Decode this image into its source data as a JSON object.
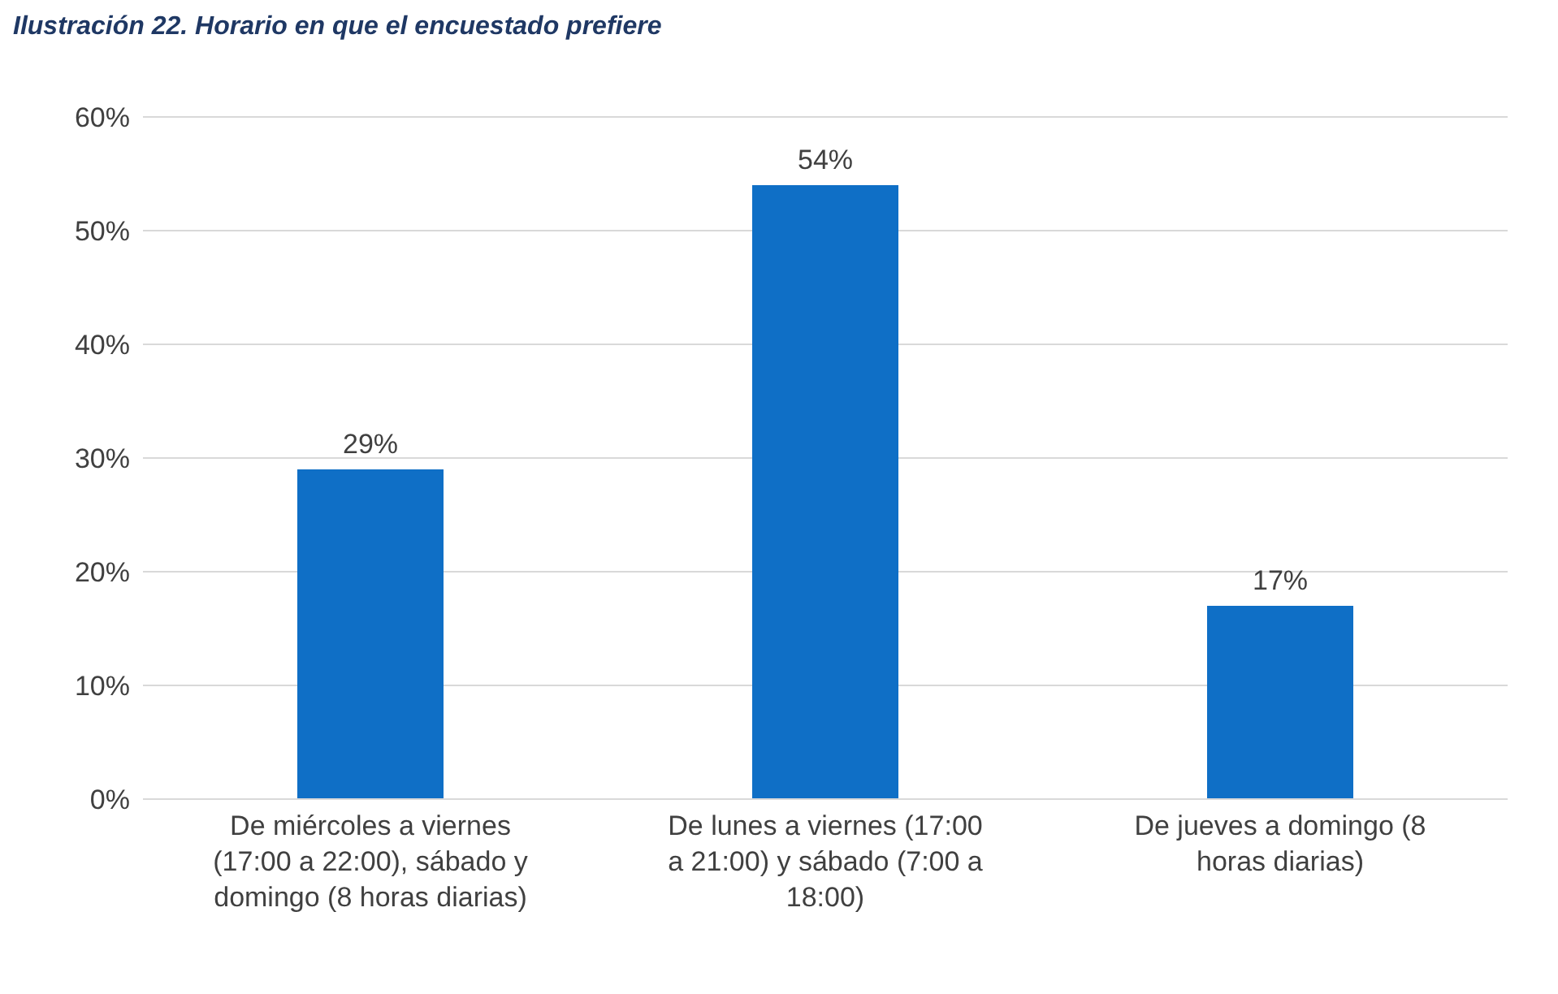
{
  "chart_data": {
    "type": "bar",
    "title": "Ilustración 22. Horario en que el encuestado prefiere",
    "categories": [
      "De miércoles a viernes (17:00 a 22:00), sábado y domingo (8 horas diarias)",
      "De lunes a viernes (17:00 a 21:00) y sábado (7:00 a 18:00)",
      "De jueves a domingo (8 horas diarias)"
    ],
    "values": [
      29,
      54,
      17
    ],
    "color": "#0f6fc6",
    "ylim": [
      0,
      60
    ],
    "yticks": [
      {
        "value": 0,
        "label": "0%"
      },
      {
        "value": 10,
        "label": "10%"
      },
      {
        "value": 20,
        "label": "20%"
      },
      {
        "value": 30,
        "label": "30%"
      },
      {
        "value": 40,
        "label": "40%"
      },
      {
        "value": 50,
        "label": "50%"
      },
      {
        "value": 60,
        "label": "60%"
      }
    ],
    "grid": "y",
    "value_labels": [
      "29%",
      "54%",
      "17%"
    ]
  }
}
